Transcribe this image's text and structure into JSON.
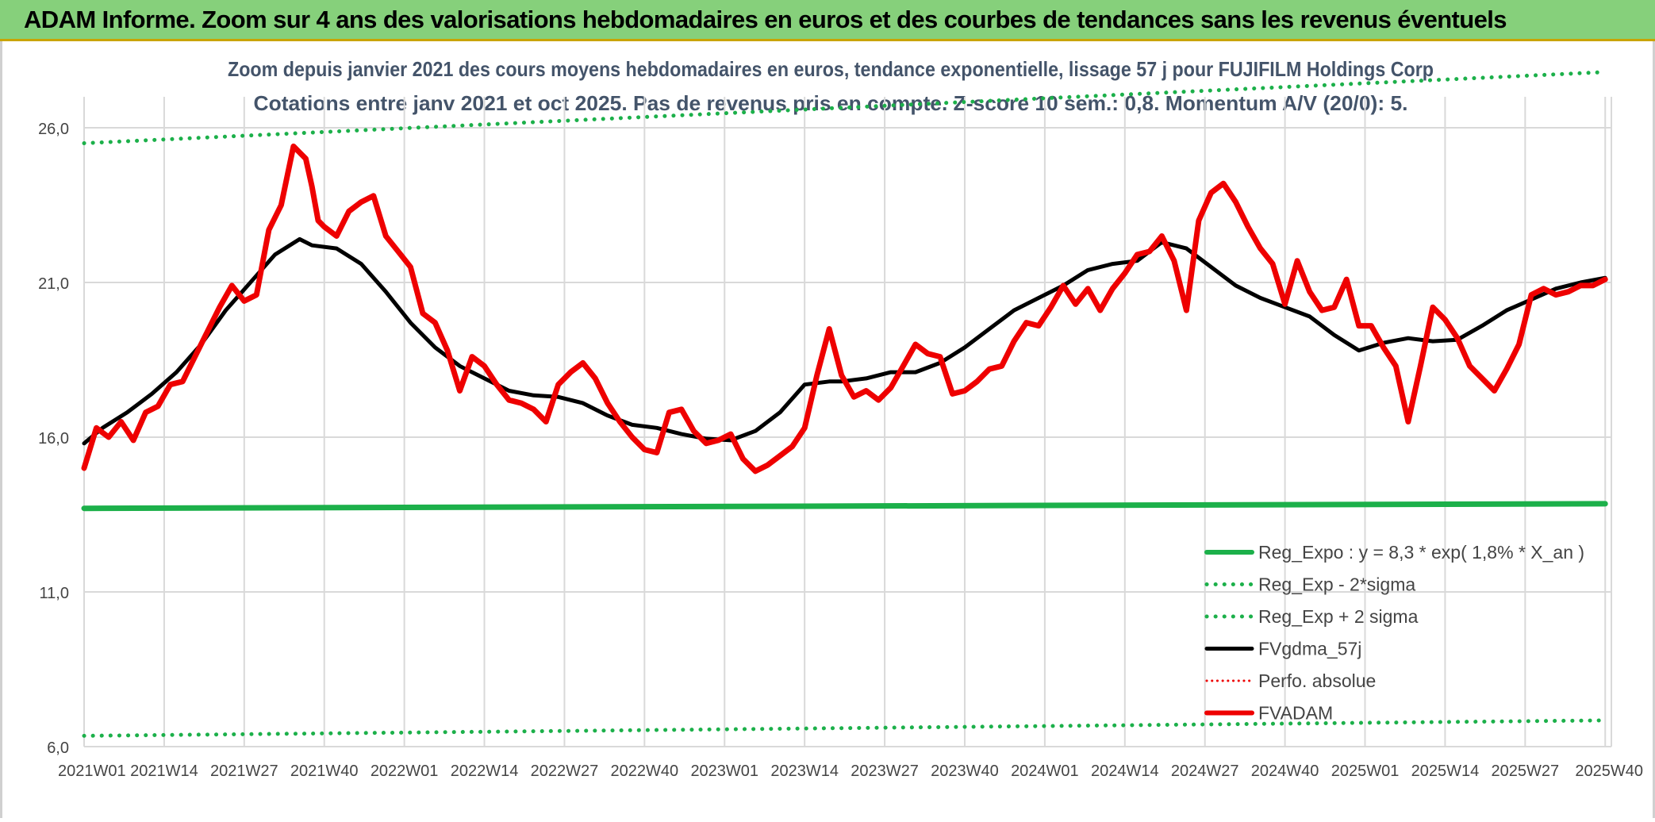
{
  "banner": {
    "title": "ADAM Informe. Zoom sur 4 ans des valorisations hebdomadaires en euros et des courbes de tendances sans les revenus éventuels"
  },
  "colors": {
    "banner_bg": "#86d07b",
    "green": "#1cb04a",
    "red": "#ee0000",
    "black": "#000000",
    "grid": "#d9d9d9",
    "title_text": "#44546a"
  },
  "chart_data": {
    "type": "line",
    "title_line1": "Zoom depuis janvier 2021 des cours moyens hebdomadaires en euros, tendance exponentielle, lissage 57 j pour FUJIFILM Holdings Corp",
    "title_line2": "Cotations entre janv 2021 et oct 2025. Pas de revenus pris en compte. Z-score 10 sem.: 0,8. Momentum A/V (20/0): 5.",
    "ylim": [
      6,
      27
    ],
    "yticks": [
      6,
      11,
      16,
      21,
      26
    ],
    "ytick_labels": [
      "6,0",
      "11,0",
      "16,0",
      "21,0",
      "26,0"
    ],
    "xlim": [
      1,
      249
    ],
    "xticks": [
      1,
      14,
      27,
      40,
      53,
      66,
      79,
      92,
      105,
      118,
      131,
      144,
      157,
      170,
      183,
      196,
      209,
      222,
      235,
      248
    ],
    "xtick_labels": [
      "2021W01",
      "2021W14",
      "2021W27",
      "2021W40",
      "2022W01",
      "2022W14",
      "2022W27",
      "2022W40",
      "2023W01",
      "2023W14",
      "2023W27",
      "2023W40",
      "2024W01",
      "2024W14",
      "2024W27",
      "2024W40",
      "2025W01",
      "2025W14",
      "2025W27",
      "2025W40"
    ],
    "legend_position": "bottom-right",
    "series": [
      {
        "name": "Reg_Expo : y = 8,3 * exp( 1,8% *  X_an )",
        "color": "#1cb04a",
        "style": "solid",
        "width": 7,
        "x": [
          1,
          248
        ],
        "y": [
          13.7,
          13.85
        ]
      },
      {
        "name": "Reg_Exp - 2*sigma",
        "color": "#1cb04a",
        "style": "dotted",
        "width": 5,
        "x": [
          1,
          248
        ],
        "y": [
          6.35,
          6.85
        ]
      },
      {
        "name": "Reg_Exp + 2 sigma",
        "color": "#1cb04a",
        "style": "dotted",
        "width": 5,
        "x": [
          1,
          248
        ],
        "y": [
          25.5,
          27.8
        ]
      },
      {
        "name": "FVgdma_57j",
        "color": "#000000",
        "style": "solid",
        "width": 5,
        "x": [
          1,
          4,
          8,
          12,
          16,
          20,
          24,
          28,
          32,
          36,
          38,
          42,
          46,
          50,
          54,
          58,
          62,
          66,
          70,
          74,
          78,
          82,
          86,
          90,
          94,
          98,
          102,
          106,
          110,
          114,
          118,
          122,
          124,
          126,
          128,
          132,
          136,
          140,
          144,
          148,
          152,
          156,
          160,
          164,
          168,
          172,
          176,
          180,
          184,
          188,
          192,
          196,
          200,
          204,
          208,
          212,
          216,
          220,
          224,
          228,
          232,
          236,
          240,
          244,
          248
        ],
        "y": [
          15.8,
          16.3,
          16.8,
          17.4,
          18.1,
          19.0,
          20.1,
          21.0,
          21.9,
          22.4,
          22.2,
          22.1,
          21.6,
          20.7,
          19.7,
          18.9,
          18.3,
          17.9,
          17.5,
          17.35,
          17.3,
          17.1,
          16.7,
          16.4,
          16.3,
          16.1,
          15.95,
          15.9,
          16.2,
          16.8,
          17.7,
          17.8,
          17.8,
          17.85,
          17.9,
          18.1,
          18.1,
          18.4,
          18.9,
          19.5,
          20.1,
          20.5,
          20.9,
          21.4,
          21.6,
          21.7,
          22.3,
          22.1,
          21.5,
          20.9,
          20.5,
          20.2,
          19.9,
          19.3,
          18.8,
          19.05,
          19.2,
          19.1,
          19.15,
          19.6,
          20.1,
          20.45,
          20.8,
          21.0,
          21.15
        ]
      },
      {
        "name": "Perfo. absolue",
        "color": "#ee0000",
        "style": "dotted",
        "width": 3,
        "x": [],
        "y": []
      },
      {
        "name": "FVADAM",
        "color": "#ee0000",
        "style": "solid",
        "width": 7,
        "x": [
          1,
          3,
          5,
          7,
          9,
          11,
          13,
          15,
          17,
          19,
          21,
          23,
          25,
          27,
          29,
          31,
          33,
          35,
          37,
          38,
          39,
          40,
          42,
          44,
          46,
          48,
          50,
          52,
          54,
          56,
          58,
          60,
          62,
          64,
          66,
          68,
          70,
          72,
          74,
          76,
          78,
          80,
          82,
          84,
          86,
          88,
          90,
          92,
          94,
          96,
          98,
          100,
          102,
          104,
          106,
          108,
          110,
          112,
          114,
          116,
          118,
          120,
          122,
          124,
          126,
          128,
          130,
          132,
          134,
          136,
          138,
          140,
          142,
          144,
          146,
          148,
          150,
          152,
          154,
          156,
          158,
          160,
          162,
          164,
          166,
          168,
          170,
          172,
          174,
          176,
          178,
          180,
          182,
          184,
          186,
          188,
          190,
          192,
          194,
          196,
          198,
          200,
          202,
          204,
          206,
          208,
          210,
          212,
          214,
          216,
          218,
          220,
          222,
          224,
          226,
          228,
          230,
          232,
          234,
          236,
          238,
          240,
          242,
          244,
          246,
          248
        ],
        "y": [
          15.0,
          16.3,
          16.0,
          16.5,
          15.9,
          16.8,
          17.0,
          17.7,
          17.8,
          18.6,
          19.4,
          20.2,
          20.9,
          20.4,
          20.6,
          22.7,
          23.5,
          25.4,
          25.0,
          24.1,
          23.0,
          22.8,
          22.5,
          23.3,
          23.6,
          23.8,
          22.5,
          22.0,
          21.5,
          20.0,
          19.7,
          18.8,
          17.5,
          18.6,
          18.3,
          17.7,
          17.2,
          17.1,
          16.9,
          16.5,
          17.7,
          18.1,
          18.4,
          17.9,
          17.1,
          16.5,
          16.0,
          15.6,
          15.5,
          16.8,
          16.9,
          16.2,
          15.8,
          15.9,
          16.1,
          15.3,
          14.9,
          15.1,
          15.4,
          15.7,
          16.3,
          18.0,
          19.5,
          18.0,
          17.3,
          17.5,
          17.2,
          17.6,
          18.3,
          19.0,
          18.7,
          18.6,
          17.4,
          17.5,
          17.8,
          18.2,
          18.3,
          19.1,
          19.7,
          19.6,
          20.2,
          20.9,
          20.3,
          20.8,
          20.1,
          20.8,
          21.3,
          21.9,
          22.0,
          22.5,
          21.7,
          20.1,
          23.0,
          23.9,
          24.2,
          23.6,
          22.8,
          22.1,
          21.6,
          20.3,
          21.7,
          20.7,
          20.1,
          20.2,
          21.1,
          19.6,
          19.6,
          18.9,
          18.3,
          16.5,
          18.3,
          20.2,
          19.8,
          19.2,
          18.3,
          17.9,
          17.5,
          18.2,
          19.0,
          20.6,
          20.8,
          20.6,
          20.7,
          20.9,
          20.9,
          21.1
        ]
      }
    ]
  }
}
